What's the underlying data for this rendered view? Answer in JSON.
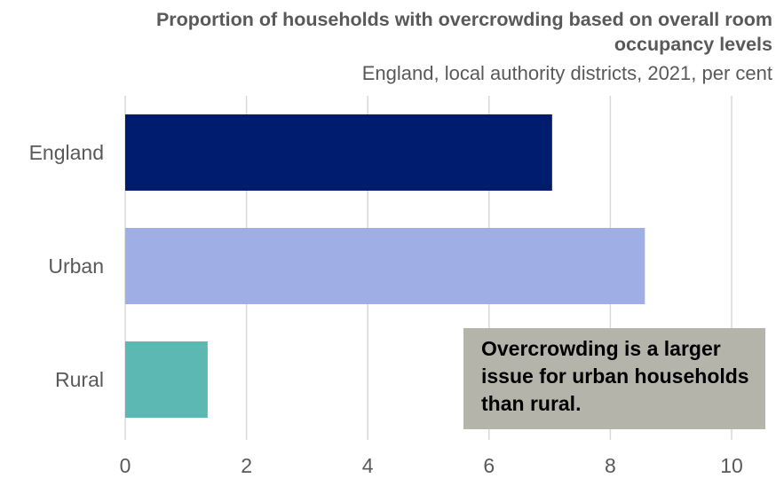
{
  "chart_data": {
    "type": "bar",
    "orientation": "horizontal",
    "title": "Proportion of households with overcrowding based on overall room occupancy levels",
    "subtitle": "England, local authority districts, 2021, per cent",
    "categories": [
      "England",
      "Urban",
      "Rural"
    ],
    "values": [
      7.04,
      8.57,
      1.36
    ],
    "colors": [
      "#001c6f",
      "#9fafe6",
      "#5cb8b2"
    ],
    "xlim": [
      0,
      10
    ],
    "xticks": [
      0,
      2,
      4,
      6,
      8,
      10
    ],
    "xlabel": "",
    "ylabel": "",
    "grid": "vertical",
    "annotation": "Overcrowding is a larger issue for urban households than rural."
  }
}
